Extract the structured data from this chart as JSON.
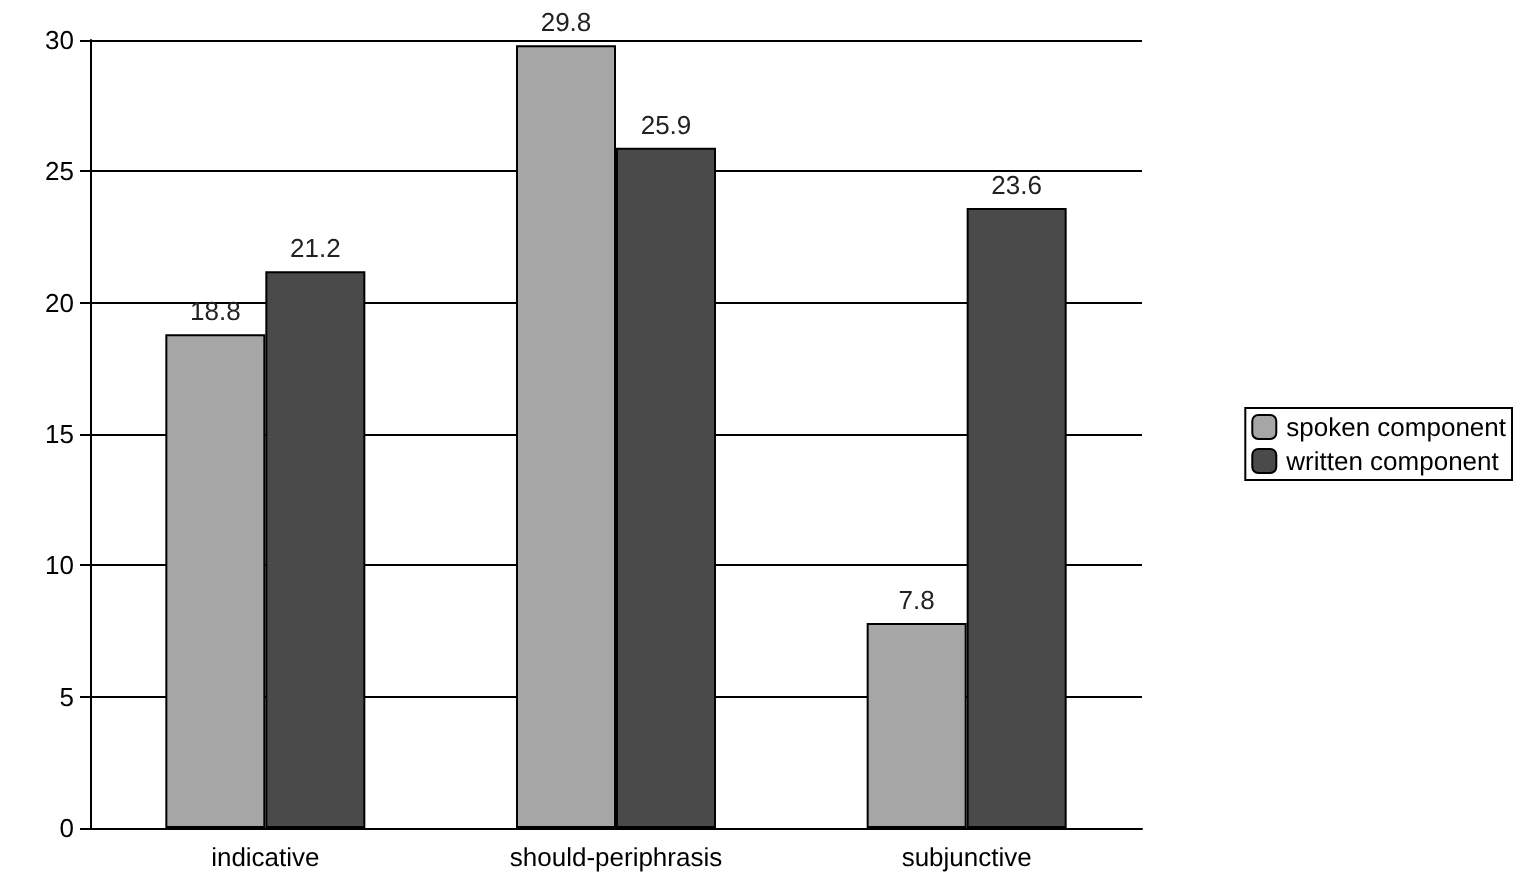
{
  "chart_data": {
    "type": "bar",
    "categories": [
      "indicative",
      "should-periphrasis",
      "subjunctive"
    ],
    "series": [
      {
        "name": "spoken component",
        "color": "#a6a6a6",
        "values": [
          18.8,
          29.8,
          7.8
        ]
      },
      {
        "name": "written component",
        "color": "#4a4a4a",
        "values": [
          21.2,
          25.9,
          23.6
        ]
      }
    ],
    "ylim": [
      0,
      30
    ],
    "yticks": [
      0,
      5,
      10,
      15,
      20,
      25,
      30
    ],
    "grid": "y",
    "legend": "right",
    "data_labels": true
  }
}
